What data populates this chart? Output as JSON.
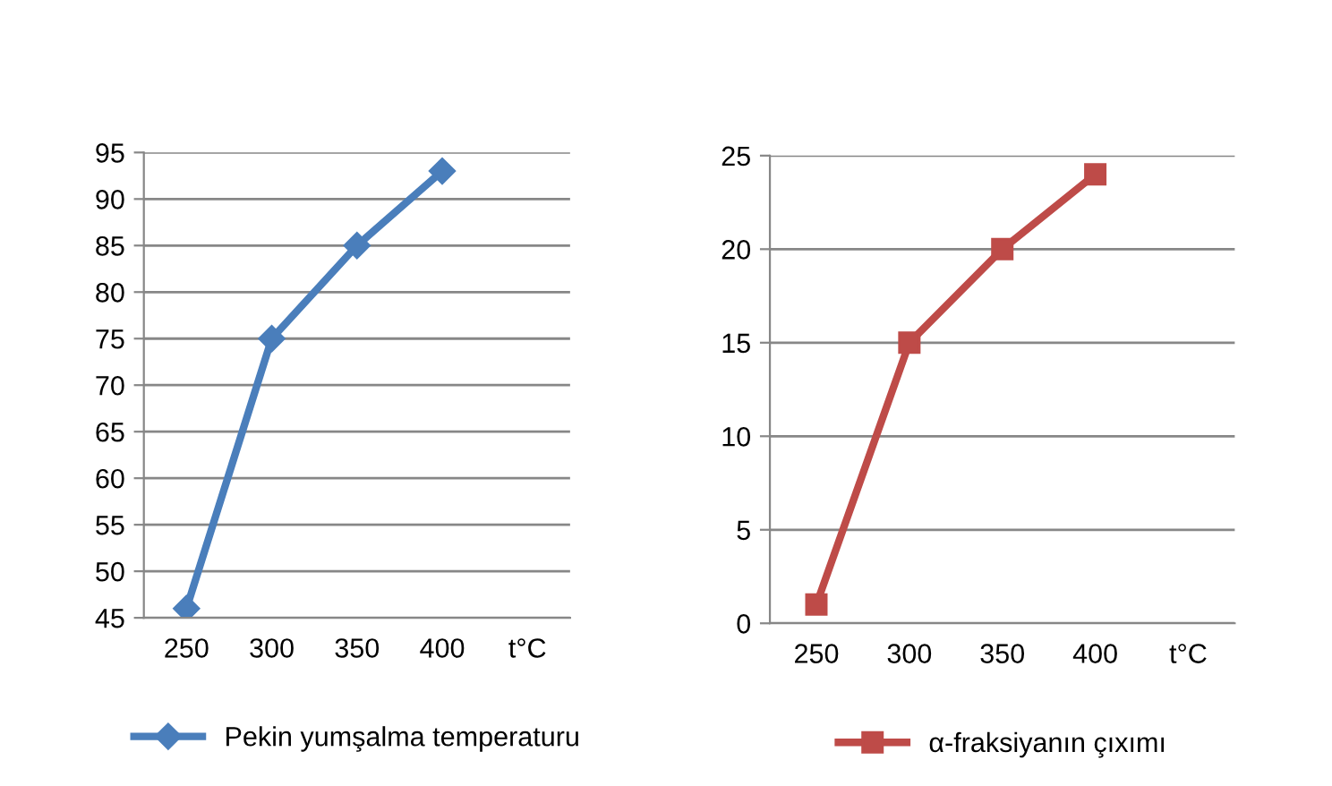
{
  "chart_data": [
    {
      "type": "line",
      "categories": [
        "250",
        "300",
        "350",
        "400",
        "t°C"
      ],
      "series": [
        {
          "name": "Pekin yumşalma temperaturu",
          "color": "#4a7ebb",
          "values": [
            46,
            75,
            85,
            93,
            null
          ]
        }
      ],
      "ylim": [
        45,
        95
      ],
      "yticks": [
        45,
        50,
        55,
        60,
        65,
        70,
        75,
        80,
        85,
        90,
        95
      ],
      "grid": "y",
      "legend": "bottom",
      "marker": "diamond",
      "line_style": "solid"
    },
    {
      "type": "line",
      "categories": [
        "250",
        "300",
        "350",
        "400",
        "t°C"
      ],
      "series": [
        {
          "name": "α-fraksiyanın çıxımı",
          "color": "#be4b48",
          "values": [
            1,
            15,
            20,
            24,
            null
          ]
        }
      ],
      "ylim": [
        0,
        25
      ],
      "yticks": [
        0,
        5,
        10,
        15,
        20,
        25
      ],
      "grid": "y",
      "legend": "bottom",
      "marker": "square",
      "line_style": "solid"
    }
  ]
}
